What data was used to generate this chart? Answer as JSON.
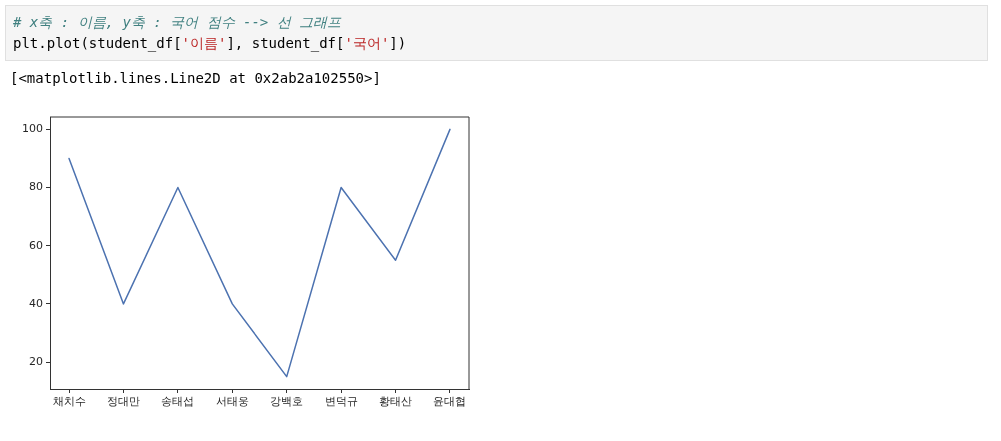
{
  "chart_data": {
    "type": "line",
    "categories": [
      "채치수",
      "정대만",
      "송태섭",
      "서태웅",
      "강백호",
      "변덕규",
      "황태산",
      "윤대협"
    ],
    "series": [
      {
        "color": "#4c72b0",
        "values": [
          90,
          40,
          80,
          40,
          15,
          80,
          55,
          100
        ]
      }
    ],
    "ylim": [
      10.75,
      104.25
    ],
    "yticks": [
      20,
      40,
      60,
      80,
      100
    ],
    "grid": false,
    "legend": false,
    "annotations": [
      "# x축 : 이름, y축 : 국어 점수 --> 선 그래프",
      "plt.plot(student_df['이름'], student_df['국어'])",
      "[<matplotlib.lines.Line2D at 0x2ab2a102550>]"
    ]
  }
}
